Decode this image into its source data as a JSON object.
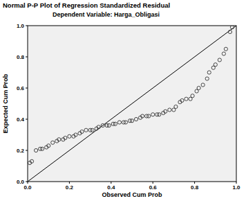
{
  "chart_data": {
    "type": "scatter",
    "title": "Normal P-P Plot of Regression Standardized Residual",
    "subtitle": "Dependent Variable: Harga_Obligasi",
    "x_label": "Observed Cum Prob",
    "y_label": "Expected Cum Prob",
    "x": [
      0.01,
      0.02,
      0.04,
      0.06,
      0.07,
      0.09,
      0.1,
      0.12,
      0.14,
      0.15,
      0.17,
      0.18,
      0.2,
      0.22,
      0.23,
      0.25,
      0.26,
      0.28,
      0.3,
      0.31,
      0.33,
      0.34,
      0.36,
      0.38,
      0.39,
      0.41,
      0.42,
      0.44,
      0.46,
      0.47,
      0.49,
      0.5,
      0.52,
      0.54,
      0.55,
      0.57,
      0.58,
      0.6,
      0.62,
      0.63,
      0.65,
      0.66,
      0.68,
      0.7,
      0.71,
      0.73,
      0.74,
      0.76,
      0.78,
      0.79,
      0.81,
      0.82,
      0.84,
      0.86,
      0.87,
      0.89,
      0.9,
      0.92,
      0.94,
      0.95,
      0.97,
      0.98
    ],
    "values": [
      0.12,
      0.13,
      0.2,
      0.21,
      0.21,
      0.22,
      0.23,
      0.25,
      0.26,
      0.27,
      0.27,
      0.28,
      0.29,
      0.29,
      0.3,
      0.31,
      0.32,
      0.33,
      0.33,
      0.33,
      0.34,
      0.35,
      0.36,
      0.36,
      0.36,
      0.37,
      0.37,
      0.38,
      0.38,
      0.38,
      0.39,
      0.39,
      0.4,
      0.41,
      0.42,
      0.42,
      0.42,
      0.43,
      0.43,
      0.43,
      0.44,
      0.45,
      0.46,
      0.46,
      0.48,
      0.51,
      0.52,
      0.53,
      0.53,
      0.55,
      0.58,
      0.6,
      0.62,
      0.66,
      0.7,
      0.73,
      0.75,
      0.78,
      0.82,
      0.85,
      0.96,
      0.99
    ],
    "color": "#333333",
    "marker": "circle-open",
    "xlim": [
      0,
      1
    ],
    "ylim": [
      0,
      1
    ],
    "xticks": [
      {
        "value": 0,
        "label": "0.0"
      },
      0.2,
      0.4,
      0.6,
      0.8,
      {
        "value": 1,
        "label": "1.0"
      }
    ],
    "yticks": [
      {
        "value": 0,
        "label": "0.0"
      },
      0.2,
      0.4,
      0.6,
      0.8,
      {
        "value": 1,
        "label": "1.0"
      }
    ],
    "grid": false
  }
}
